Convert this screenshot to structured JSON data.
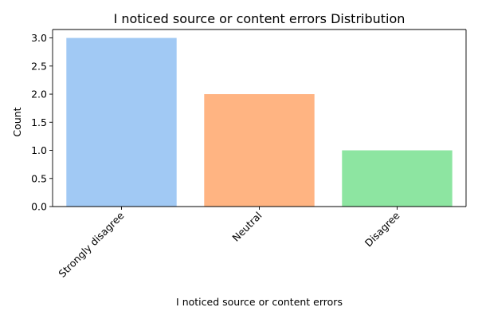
{
  "chart_data": {
    "type": "bar",
    "title": "I noticed source or content errors Distribution",
    "xlabel": "I noticed source or content errors",
    "ylabel": "Count",
    "categories": [
      "Strongly disagree",
      "Neutral",
      "Disagree"
    ],
    "values": [
      3,
      2,
      1
    ],
    "colors": [
      "#a1c9f4",
      "#ffb482",
      "#8de5a1"
    ],
    "ylim": [
      0,
      3.15
    ],
    "yticks": [
      "0.0",
      "0.5",
      "1.0",
      "1.5",
      "2.0",
      "2.5",
      "3.0"
    ],
    "grid": false,
    "legend": "none"
  }
}
